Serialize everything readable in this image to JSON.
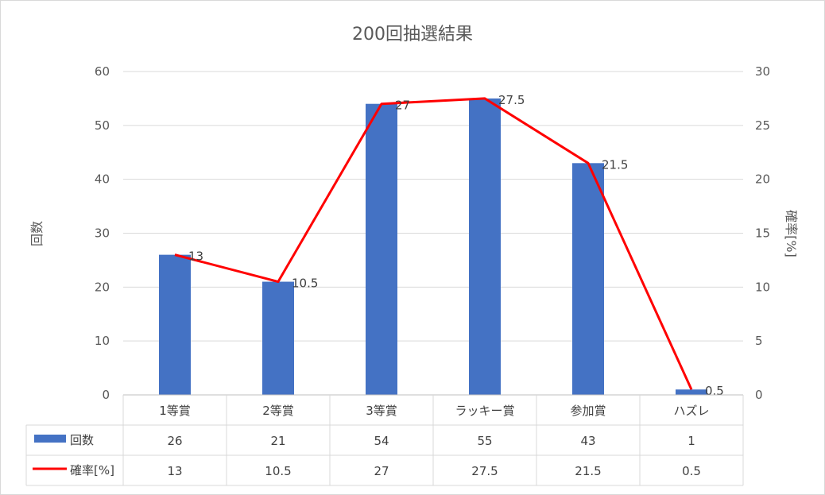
{
  "chart_data": {
    "type": "bar",
    "title": "200回抽選結果",
    "categories": [
      "1等賞",
      "2等賞",
      "3等賞",
      "ラッキー賞",
      "参加賞",
      "ハズレ"
    ],
    "ylabel": "回数",
    "y2label": "確率[%]",
    "ylim": [
      0,
      60
    ],
    "y2lim": [
      0,
      30
    ],
    "yticks": [
      0,
      10,
      20,
      30,
      40,
      50,
      60
    ],
    "y2ticks": [
      0,
      5,
      10,
      15,
      20,
      25,
      30
    ],
    "grid": true,
    "legend": "data-table",
    "series": [
      {
        "name": "回数",
        "type": "bar",
        "axis": "left",
        "color": "#4472c4",
        "values": [
          26,
          21,
          54,
          55,
          43,
          1
        ]
      },
      {
        "name": "確率[%]",
        "type": "line",
        "axis": "right",
        "color": "#ff0000",
        "values": [
          13,
          10.5,
          27,
          27.5,
          21.5,
          0.5
        ],
        "data_labels": [
          "13",
          "10.5",
          "27",
          "27.5",
          "21.5",
          "0.5"
        ]
      }
    ],
    "table_rows": [
      {
        "name": "回数",
        "cells": [
          "26",
          "21",
          "54",
          "55",
          "43",
          "1"
        ]
      },
      {
        "name": "確率[%]",
        "cells": [
          "13",
          "10.5",
          "27",
          "27.5",
          "21.5",
          "0.5"
        ]
      }
    ]
  }
}
